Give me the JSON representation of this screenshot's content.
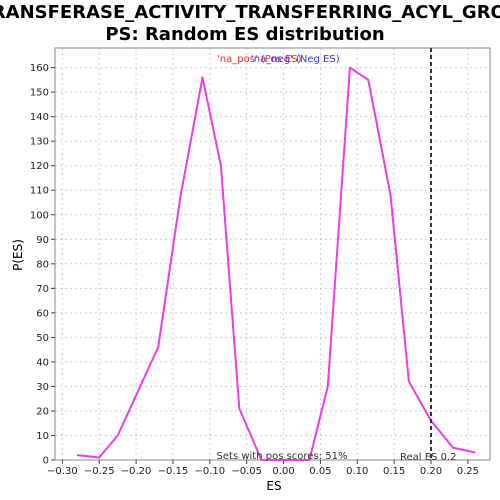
{
  "chart_data": {
    "type": "line",
    "title_line1": "TRANSFERASE_ACTIVITY_TRANSFERRING_ACYL_GROU",
    "title_line2": "PS: Random ES distribution",
    "xlabel": "ES",
    "ylabel": "P(ES)",
    "xlim": [
      -0.31,
      0.28
    ],
    "ylim": [
      0,
      168
    ],
    "x_ticks": [
      -0.3,
      -0.25,
      -0.2,
      -0.15,
      -0.1,
      -0.05,
      0.0,
      0.05,
      0.1,
      0.15,
      0.2,
      0.25
    ],
    "x_tick_labels": [
      "−0.30",
      "−0.25",
      "−0.20",
      "−0.15",
      "−0.10",
      "−0.05",
      "0.00",
      "0.05",
      "0.10",
      "0.15",
      "0.20",
      "0.25"
    ],
    "y_ticks": [
      0,
      10,
      20,
      30,
      40,
      50,
      60,
      70,
      80,
      90,
      100,
      110,
      120,
      130,
      140,
      150,
      160
    ],
    "grid": true,
    "legend": [
      {
        "label": "'na_pos' (Pos ES)",
        "color": "#e8302a"
      },
      {
        "label": "'na_neg' (Neg ES)",
        "color": "#3b3bd6"
      }
    ],
    "series": [
      {
        "color": "#e83ee8",
        "x": [
          -0.28,
          -0.25,
          -0.225,
          -0.17,
          -0.14,
          -0.11,
          -0.085,
          -0.06,
          -0.03,
          0.0,
          0.035,
          0.06,
          0.09,
          0.115,
          0.145,
          0.17,
          0.2,
          0.23,
          0.26
        ],
        "y": [
          2,
          1,
          10,
          46,
          107,
          156,
          120,
          21,
          0,
          0,
          0,
          30,
          160,
          155,
          108,
          32,
          16,
          5,
          3
        ]
      }
    ],
    "real_es": {
      "value": 0.2,
      "label": "Real ES 0.2"
    },
    "annotation": "Sets with pos scores: 51%"
  }
}
